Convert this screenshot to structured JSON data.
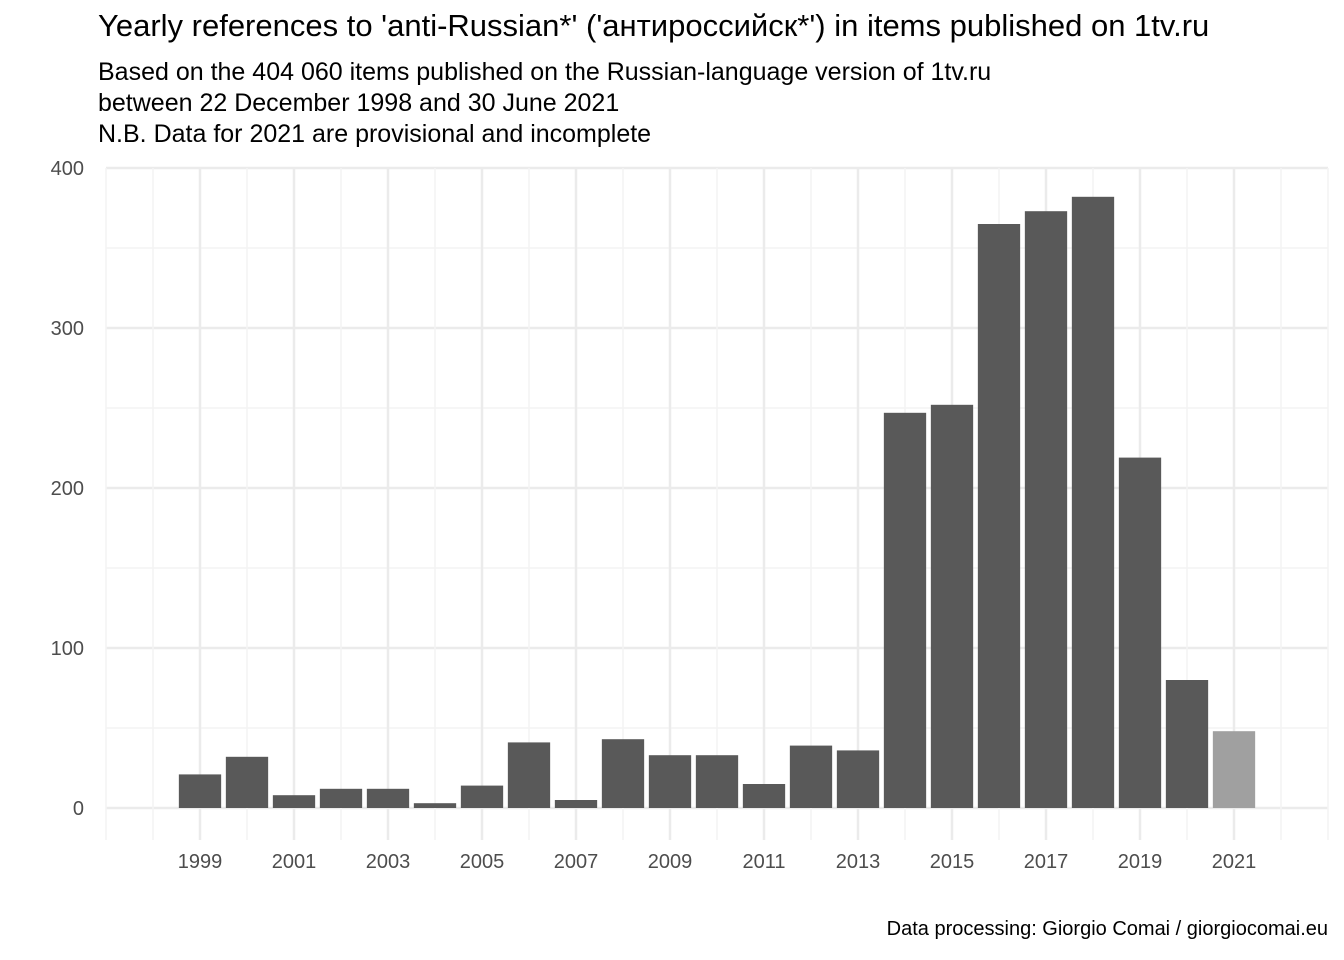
{
  "chart_data": {
    "type": "bar",
    "title": "Yearly references to 'anti-Russian*' ('антироссийск*') in items published on 1tv.ru",
    "subtitle": [
      "Based on the  404 060 items published on the Russian-language version of 1tv.ru",
      "between 22 December 1998 and 30 June 2021",
      "N.B. Data for 2021 are provisional and incomplete"
    ],
    "caption": "Data processing: Giorgio Comai / giorgiocomai.eu",
    "xlabel": "",
    "ylabel": "",
    "ylim": [
      0,
      400
    ],
    "xlim": [
      1997,
      2023
    ],
    "y_ticks": [
      0,
      100,
      200,
      300,
      400
    ],
    "x_ticks": [
      1999,
      2001,
      2003,
      2005,
      2007,
      2009,
      2011,
      2013,
      2015,
      2017,
      2019,
      2021
    ],
    "grid": true,
    "legend": "none",
    "x": [
      1999,
      2000,
      2001,
      2002,
      2003,
      2004,
      2005,
      2006,
      2007,
      2008,
      2009,
      2010,
      2011,
      2012,
      2013,
      2014,
      2015,
      2016,
      2017,
      2018,
      2019,
      2020,
      2021
    ],
    "values": [
      21,
      32,
      8,
      12,
      12,
      3,
      14,
      41,
      5,
      43,
      33,
      33,
      15,
      39,
      36,
      247,
      252,
      365,
      373,
      382,
      219,
      80,
      48
    ],
    "provisional": [
      false,
      false,
      false,
      false,
      false,
      false,
      false,
      false,
      false,
      false,
      false,
      false,
      false,
      false,
      false,
      false,
      false,
      false,
      false,
      false,
      false,
      false,
      true
    ],
    "colors": {
      "bar": "#595959",
      "bar_provisional": "#a0a0a0",
      "grid_major": "#ebebeb",
      "grid_minor": "#f4f4f4",
      "tick_text": "#4d4d4d"
    }
  }
}
